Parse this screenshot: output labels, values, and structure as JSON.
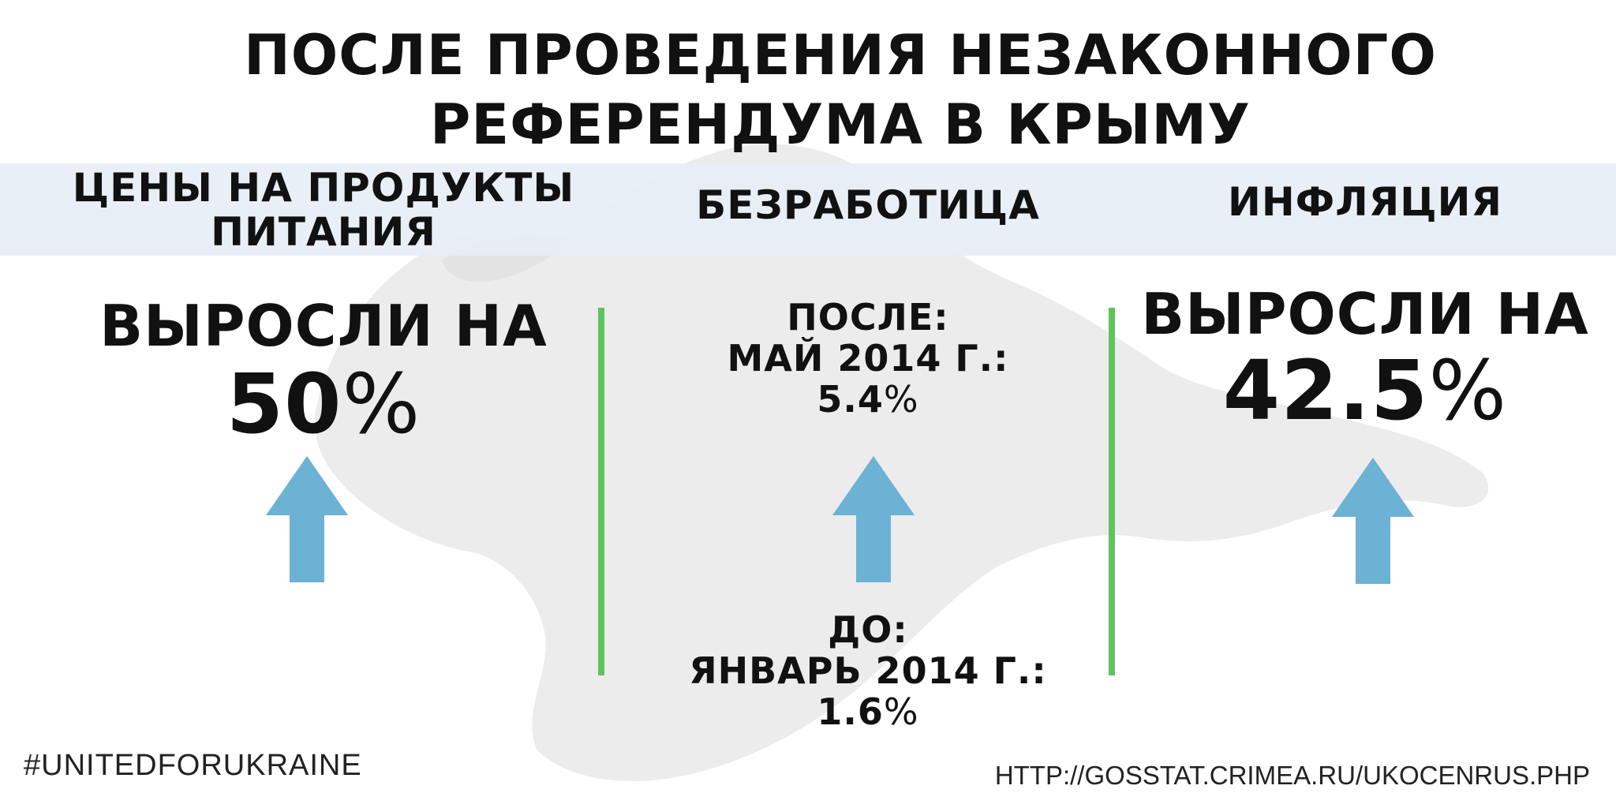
{
  "title": {
    "line1": "ПОСЛЕ ПРОВЕДЕНИЯ НЕЗАКОННОГО",
    "line2": "РЕФЕРЕНДУМА В КРЫМУ"
  },
  "columns": {
    "food": {
      "heading_line1": "ЦЕНЫ НА ПРОДУКТЫ",
      "heading_line2": "ПИТАНИЯ",
      "label": "ВЫРОСЛИ НА",
      "value": "50",
      "unit": "%",
      "arrow_icon": "arrow-up-icon"
    },
    "unemployment": {
      "heading": "БЕЗРАБОТИЦА",
      "after_label": "ПОСЛЕ:",
      "after_date": "МАЙ 2014 Г.:",
      "after_value": "5.4",
      "after_unit": "%",
      "before_label": "ДО:",
      "before_date": "ЯНВАРЬ 2014 Г.:",
      "before_value": "1.6",
      "before_unit": "%",
      "arrow_icon": "arrow-up-icon"
    },
    "inflation": {
      "heading": "ИНФЛЯЦИЯ",
      "label": "ВЫРОСЛИ НА",
      "value": "42.5",
      "unit": "%",
      "arrow_icon": "arrow-up-icon"
    }
  },
  "footer": {
    "hashtag": "#UNITEDFORUKRAINE",
    "source_url": "HTTP://GOSSTAT.CRIMEA.RU/UKOCENRUS.PHP"
  },
  "colors": {
    "band": "#e6eef5",
    "map": "#ececec",
    "arrow": "#6cb2d4",
    "divider": "#5cc55c",
    "text": "#111111"
  }
}
